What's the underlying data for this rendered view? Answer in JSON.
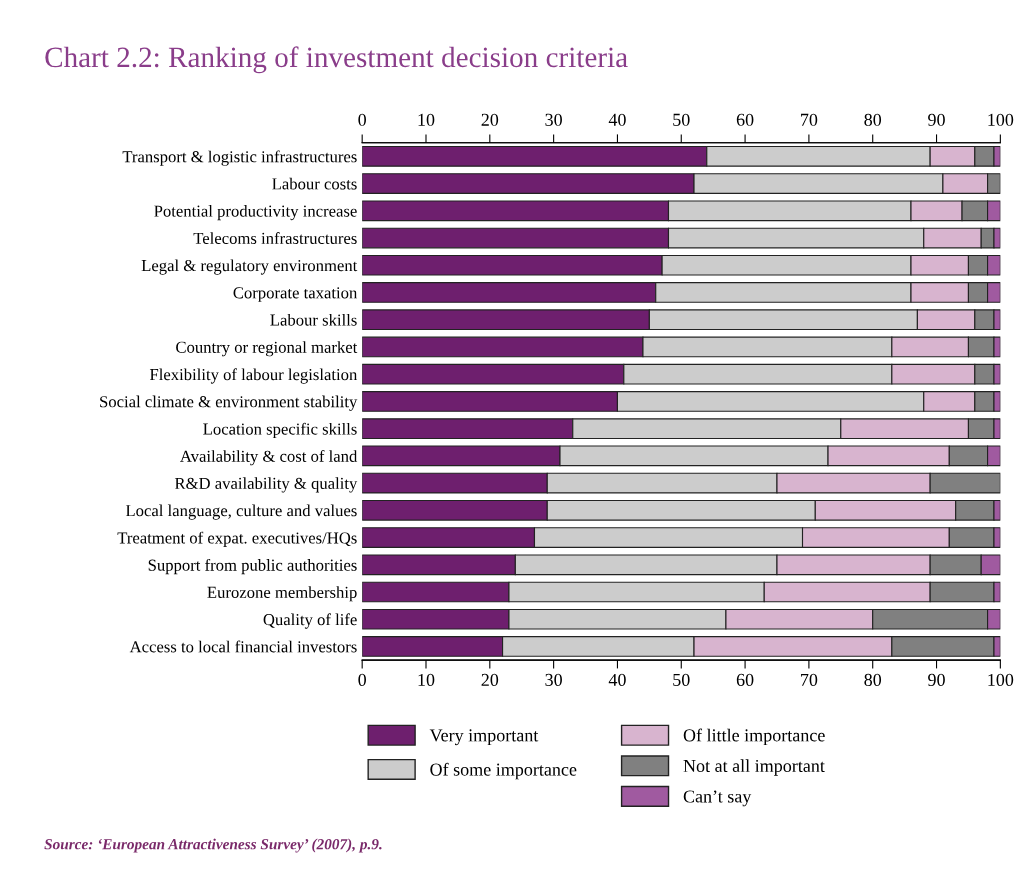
{
  "chart_data": {
    "type": "bar",
    "orientation": "horizontal",
    "stacked": true,
    "title": "Chart 2.2: Ranking of investment decision criteria",
    "categories": [
      "Transport & logistic infrastructures",
      "Labour costs",
      "Potential productivity increase",
      "Telecoms infrastructures",
      "Legal & regulatory environment",
      "Corporate taxation",
      "Labour skills",
      "Country or regional market",
      "Flexibility of labour legislation",
      "Social climate & environment stability",
      "Location specific skills",
      "Availability & cost of land",
      "R&D availability & quality",
      "Local language, culture and values",
      "Treatment of expat. executives/HQs",
      "Support from public authorities",
      "Eurozone membership",
      "Quality of life",
      "Access to local financial investors"
    ],
    "series": [
      {
        "name": "Very important",
        "color": "#6e1f6e",
        "values": [
          54,
          52,
          48,
          48,
          47,
          46,
          45,
          44,
          41,
          40,
          33,
          31,
          29,
          29,
          27,
          24,
          23,
          23,
          22
        ]
      },
      {
        "name": "Of some importance",
        "color": "#cccccc",
        "values": [
          35,
          39,
          38,
          40,
          39,
          40,
          42,
          39,
          42,
          48,
          42,
          42,
          36,
          42,
          42,
          41,
          40,
          34,
          30
        ]
      },
      {
        "name": "Of little importance",
        "color": "#d8b4cf",
        "values": [
          7,
          7,
          8,
          9,
          9,
          9,
          9,
          12,
          13,
          8,
          20,
          19,
          24,
          22,
          23,
          24,
          26,
          23,
          31
        ]
      },
      {
        "name": "Not at all important",
        "color": "#808080",
        "values": [
          3,
          2,
          4,
          2,
          3,
          3,
          3,
          4,
          3,
          3,
          4,
          6,
          11,
          6,
          7,
          8,
          10,
          18,
          16
        ]
      },
      {
        "name": "Can’t say",
        "color": "#a05aa0",
        "values": [
          1,
          0,
          2,
          1,
          2,
          2,
          1,
          1,
          1,
          1,
          1,
          2,
          0,
          1,
          1,
          3,
          1,
          2,
          1
        ]
      }
    ],
    "xlim": [
      0,
      100
    ],
    "xticks": [
      0,
      10,
      20,
      30,
      40,
      50,
      60,
      70,
      80,
      90,
      100
    ],
    "x2lim": [
      0,
      100
    ],
    "x2ticks": [
      0,
      10,
      20,
      30,
      40,
      50,
      60,
      70,
      80,
      90,
      100
    ],
    "legend": "bottom",
    "grid": false,
    "annotations": [
      "Source: ‘European Attractiveness Survey’ (2007), p.9."
    ]
  }
}
